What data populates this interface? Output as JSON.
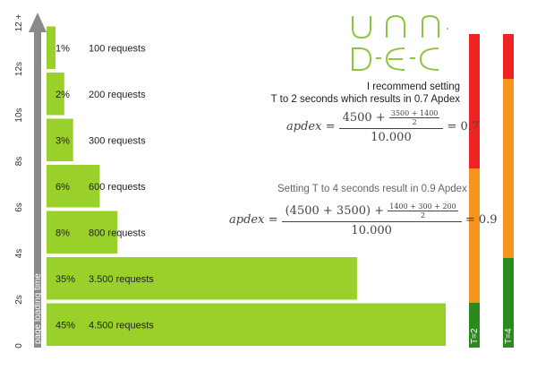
{
  "chart_data": {
    "type": "bar",
    "orientation": "horizontal",
    "ylabel": "page loading time",
    "y_ticks": [
      "0",
      "2s",
      "4s",
      "6s",
      "8s",
      "10s",
      "12s",
      "12 +"
    ],
    "bars": [
      {
        "range": "0-2s",
        "percent": "45%",
        "requests": "4.500 requests",
        "value": 4500
      },
      {
        "range": "2-4s",
        "percent": "35%",
        "requests": "3.500 requests",
        "value": 3500
      },
      {
        "range": "4-6s",
        "percent": "8%",
        "requests": "800 requests",
        "value": 800
      },
      {
        "range": "6-8s",
        "percent": "6%",
        "requests": "600 requests",
        "value": 600
      },
      {
        "range": "8-10s",
        "percent": "3%",
        "requests": "300 requests",
        "value": 300
      },
      {
        "range": "10-12s",
        "percent": "2%",
        "requests": "200 requests",
        "value": 200
      },
      {
        "range": "12s +",
        "percent": "1%",
        "requests": "100 requests",
        "value": 100
      }
    ],
    "threshold_bars": [
      {
        "label": "T=2",
        "segments": [
          {
            "status": "satisfied",
            "from": 0,
            "to": 2,
            "color": "#2a8a1e"
          },
          {
            "status": "tolerating",
            "from": 2,
            "to": 8,
            "color": "#f7941d"
          },
          {
            "status": "frustrated",
            "from": 8,
            "to": 14,
            "color": "#ee2424"
          }
        ]
      },
      {
        "label": "T=4",
        "segments": [
          {
            "status": "satisfied",
            "from": 0,
            "to": 4,
            "color": "#2a8a1e"
          },
          {
            "status": "tolerating",
            "from": 4,
            "to": 12,
            "color": "#f7941d"
          },
          {
            "status": "frustrated",
            "from": 12,
            "to": 14,
            "color": "#ee2424"
          }
        ]
      }
    ],
    "bar_color": "#99d12a"
  },
  "logo": {
    "line1": "VAN",
    "line2": "DE EC",
    "color": "#8cc63f"
  },
  "recommendation": {
    "line1": "I recommend setting",
    "line2": "T to 2 seconds which results in 0.7 Apdex"
  },
  "formula1": {
    "lhs": "apdex",
    "num_main": "4500 +",
    "sub_num": "3500 + 1400",
    "sub_den": "2",
    "den": "10.000",
    "result": "= 0.7"
  },
  "setting2": {
    "text": "Setting T to 4 seconds result in 0.9 Apdex"
  },
  "formula2": {
    "lhs": "apdex",
    "num_main": "(4500 + 3500) +",
    "sub_num": "1400 + 300 + 200",
    "sub_den": "2",
    "den": "10.000",
    "result": "= 0.9"
  }
}
